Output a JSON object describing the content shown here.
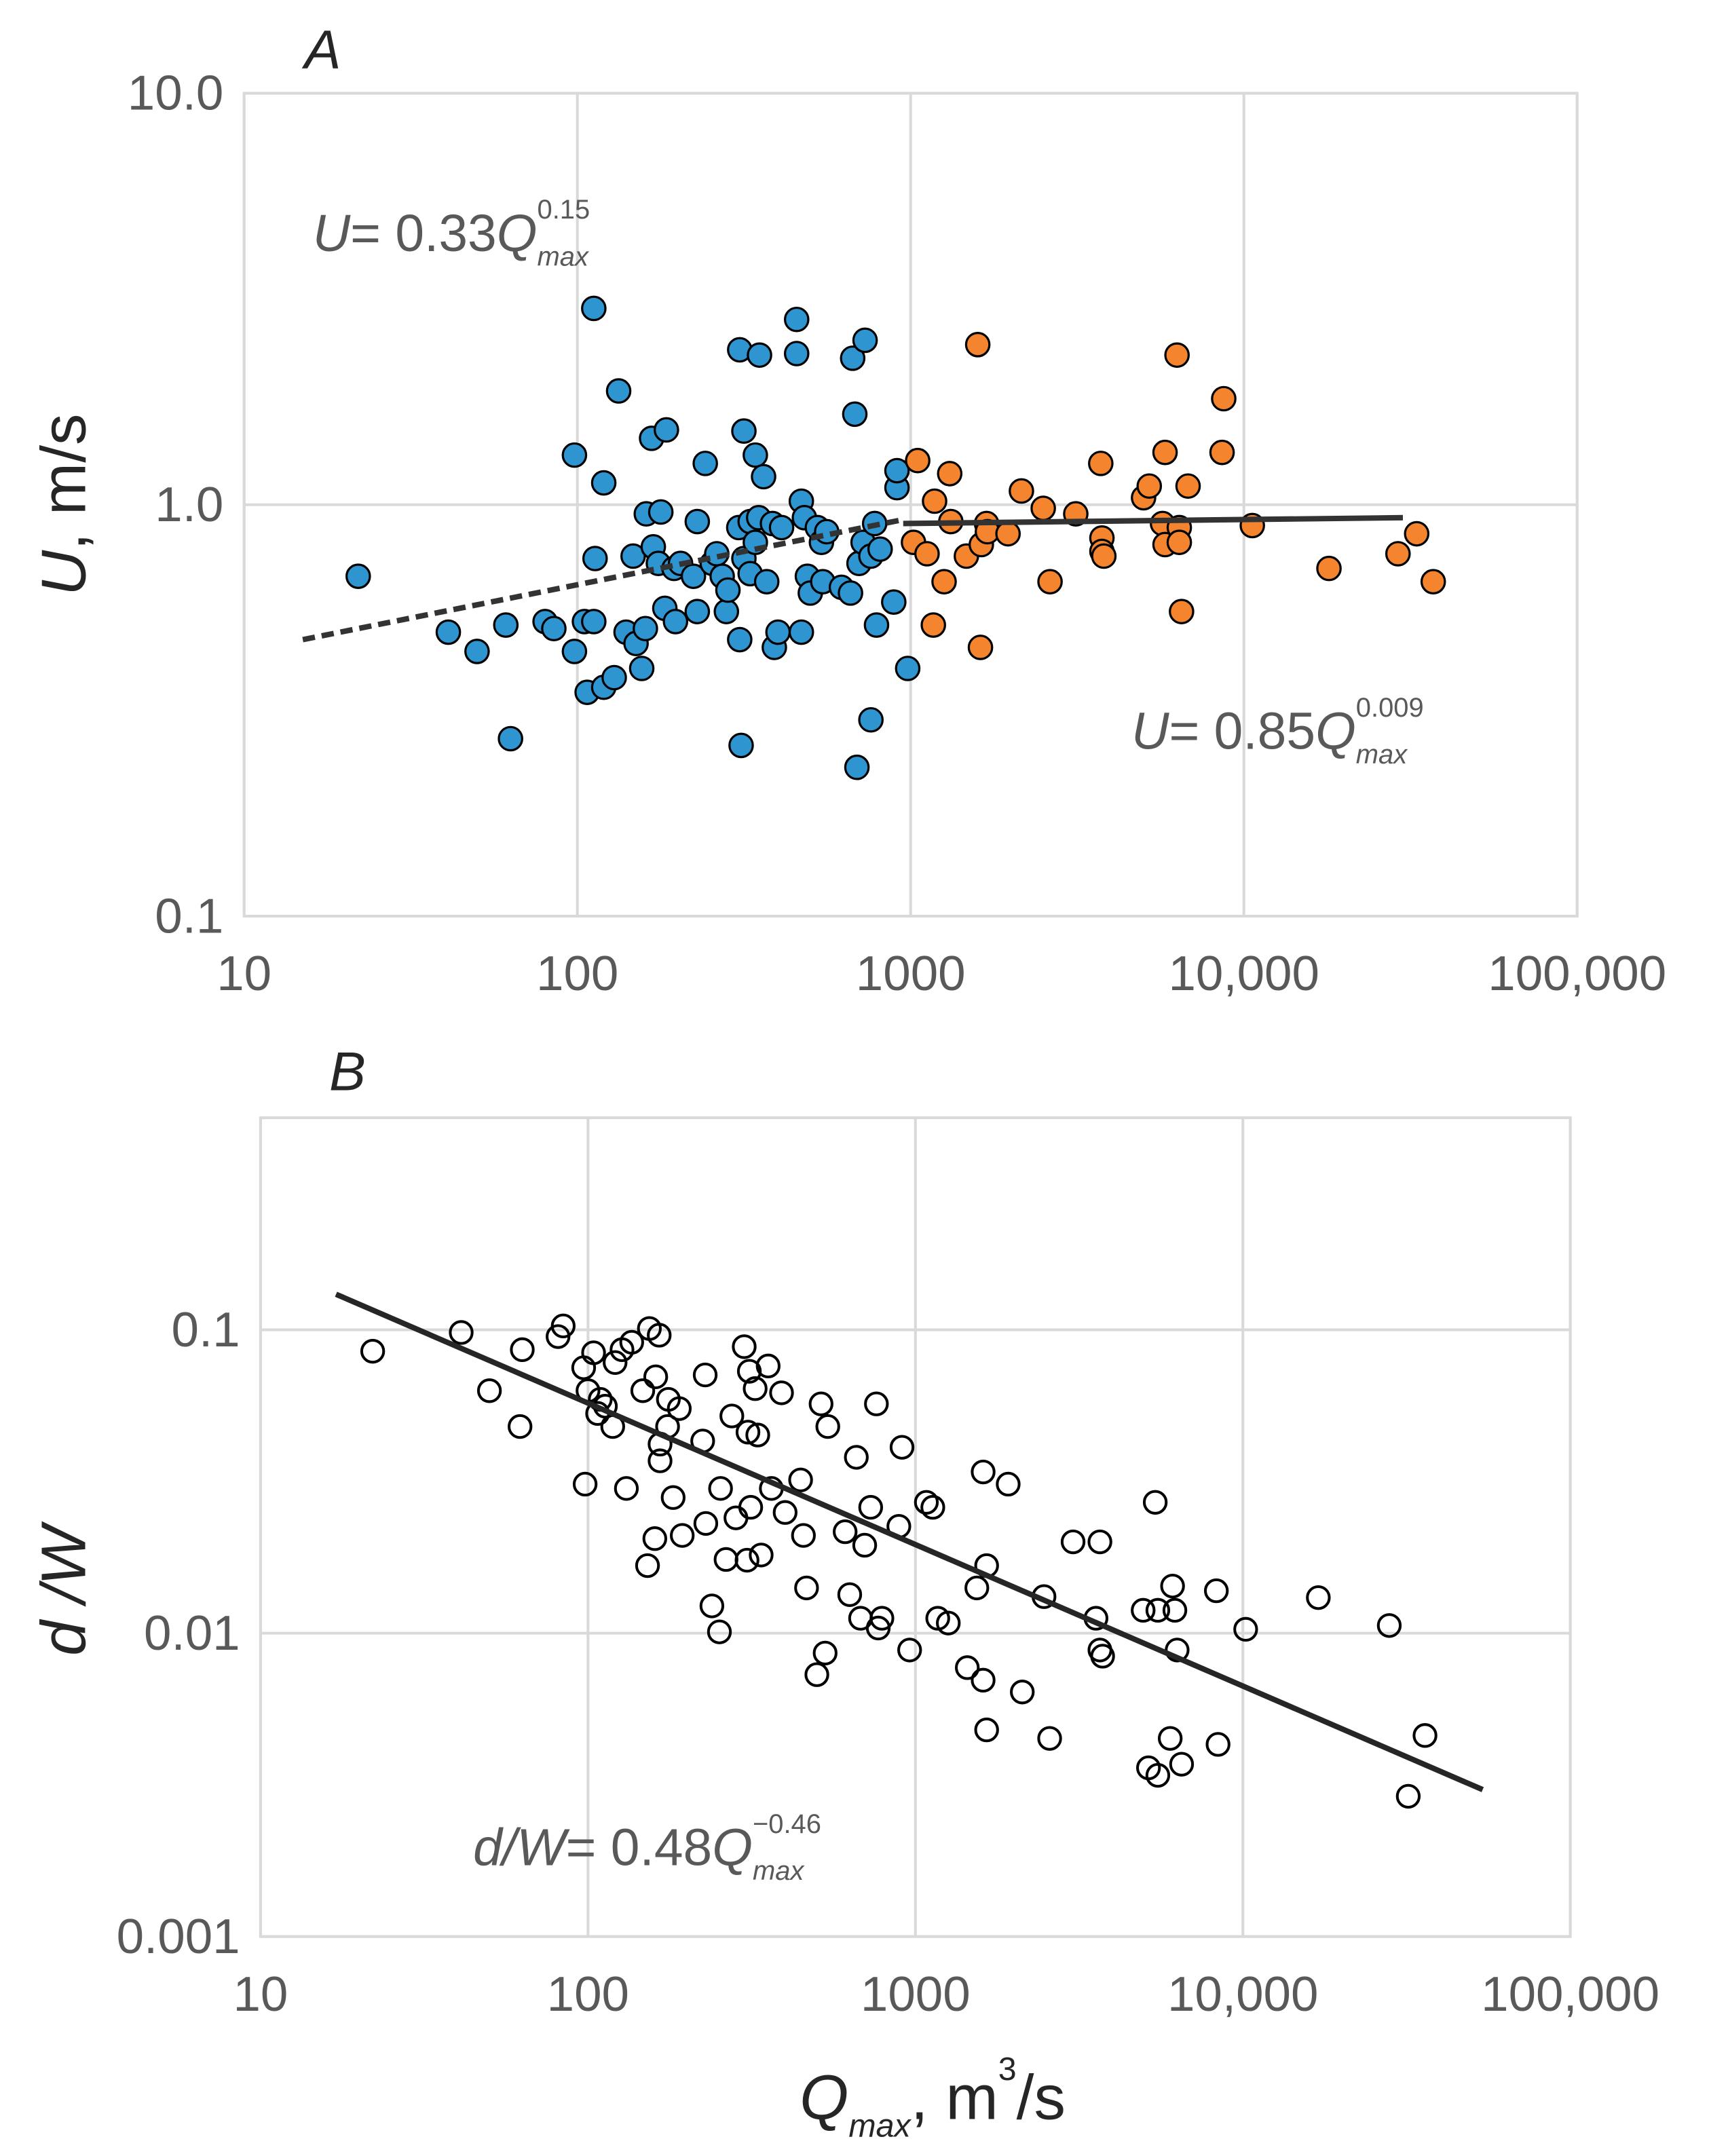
{
  "chart_data": [
    {
      "type": "scatter",
      "title": "A",
      "ylabel": [
        {
          "text": "U",
          "italic": true
        },
        {
          "text": ", m/s"
        }
      ],
      "xscale": "log",
      "yscale": "log",
      "grid": true,
      "xlim": [
        10,
        100000
      ],
      "ylim": [
        0.1,
        10
      ],
      "xticks": [
        10,
        100,
        1000,
        {
          "value": 10000,
          "label": "10,000"
        },
        {
          "value": 100000,
          "label": "100,000"
        }
      ],
      "yticks": [
        0.1,
        {
          "value": 1,
          "label": "1.0"
        },
        {
          "value": 10,
          "label": "10.0"
        }
      ],
      "marker": "filled",
      "series": [
        {
          "color": "#2e95d1",
          "x": [
            22,
            41,
            50,
            61,
            63,
            80,
            85,
            98,
            98,
            105,
            107,
            112,
            112,
            113,
            120,
            120,
            129,
            133,
            140,
            147,
            150,
            160,
            161,
            156,
            167,
            169,
            175,
            178,
            185,
            183,
            195,
            197,
            204,
            223,
            229,
            229,
            242,
            254,
            262,
            272,
            280,
            283,
            305,
            307,
            307,
            310,
            316,
            316,
            330,
            330,
            342,
            342,
            350,
            352,
            362,
            370,
            385,
            390,
            400,
            410,
            455,
            455,
            470,
            470,
            480,
            490,
            500,
            525,
            540,
            545,
            560,
            620,
            660,
            670,
            680,
            690,
            700,
            720,
            730,
            760,
            760,
            780,
            790,
            810,
            890,
            910,
            910,
            980
          ],
          "values": [
            0.67,
            0.49,
            0.44,
            0.51,
            0.27,
            0.52,
            0.5,
            1.32,
            0.44,
            0.52,
            0.35,
            3.0,
            0.52,
            0.74,
            1.13,
            0.36,
            0.38,
            1.89,
            0.49,
            0.75,
            0.46,
            0.5,
            0.95,
            0.4,
            1.45,
            0.79,
            0.72,
            0.96,
            1.52,
            0.56,
            0.7,
            0.52,
            0.72,
            0.67,
            0.55,
            0.91,
            1.26,
            0.72,
            0.76,
            0.67,
            0.55,
            0.62,
            0.88,
            2.38,
            0.47,
            0.26,
            0.74,
            1.51,
            0.91,
            0.68,
            1.32,
            0.81,
            0.93,
            2.31,
            1.17,
            0.65,
            0.9,
            0.45,
            0.49,
            0.88,
            2.82,
            2.33,
            0.49,
            1.02,
            0.93,
            0.67,
            0.61,
            0.88,
            0.81,
            0.65,
            0.86,
            0.63,
            0.61,
            2.27,
            1.66,
            0.23,
            0.72,
            0.81,
            2.51,
            0.75,
            0.3,
            0.9,
            0.51,
            0.78,
            0.58,
            1.1,
            1.21,
            0.4
          ]
        },
        {
          "color": "#f5842e",
          "x": [
            1020,
            1050,
            1120,
            1170,
            1180,
            1260,
            1310,
            1320,
            1470,
            1590,
            1620,
            1630,
            1690,
            1700,
            1960,
            2150,
            2500,
            2620,
            3130,
            3720,
            3750,
            3750,
            3800,
            5000,
            5200,
            5700,
            5800,
            5800,
            6300,
            6400,
            6400,
            6500,
            6800,
            8600,
            8700,
            10600,
            18000,
            29000,
            33000,
            37000
          ],
          "values": [
            0.81,
            1.28,
            0.76,
            0.51,
            1.02,
            0.65,
            1.19,
            0.91,
            0.75,
            2.45,
            0.45,
            0.8,
            0.9,
            0.86,
            0.85,
            1.08,
            0.98,
            0.65,
            0.95,
            1.26,
            0.83,
            0.77,
            0.75,
            1.04,
            1.11,
            0.9,
            1.34,
            0.8,
            2.31,
            0.88,
            0.81,
            0.55,
            1.11,
            1.34,
            1.81,
            0.89,
            0.7,
            0.76,
            0.85,
            0.65
          ]
        }
      ],
      "lines": [
        {
          "x": [
            15,
            950
          ],
          "values": [
            0.47,
            0.92
          ],
          "dash": true,
          "color": "#333333"
        },
        {
          "x": [
            950,
            30000
          ],
          "values": [
            0.9,
            0.93
          ],
          "dash": false,
          "color": "#333333"
        }
      ],
      "annotations": [
        [
          {
            "text": "U",
            "italic": true
          },
          {
            "text": " = 0.33"
          },
          {
            "text": "Q",
            "italic": true
          },
          {
            "text": "max",
            "italic": true,
            "shift": "sub"
          },
          {
            "text": "0.15",
            "shift": "sup"
          }
        ],
        [
          {
            "text": "U",
            "italic": true
          },
          {
            "text": " = 0.85"
          },
          {
            "text": "Q",
            "italic": true
          },
          {
            "text": "max",
            "italic": true,
            "shift": "sub"
          },
          {
            "text": "0.009",
            "shift": "sup"
          }
        ]
      ]
    },
    {
      "type": "scatter",
      "title": "B",
      "ylabel": [
        {
          "text": "d /W",
          "italic": true
        }
      ],
      "xlabel": [
        {
          "text": "Q",
          "italic": true
        },
        {
          "text": "max",
          "italic": true,
          "shift": "sub"
        },
        {
          "text": ", m"
        },
        {
          "text": "3",
          "shift": "sup"
        },
        {
          "text": "/s"
        }
      ],
      "xscale": "log",
      "yscale": "log",
      "grid": true,
      "xlim": [
        10,
        100000
      ],
      "ylim": [
        0.001,
        0.5
      ],
      "xticks": [
        10,
        100,
        1000,
        {
          "value": 10000,
          "label": "10,000"
        },
        {
          "value": 100000,
          "label": "100,000"
        }
      ],
      "yticks": [
        0.001,
        0.01,
        0.1
      ],
      "marker": "open",
      "series": [
        {
          "color": "#000000",
          "x": [
            22,
            41,
            50,
            62,
            63,
            81,
            84,
            97,
            98,
            100,
            104,
            107,
            109,
            113,
            119,
            121,
            127,
            131,
            136,
            147,
            152,
            154,
            160,
            161,
            165,
            166,
            166,
            175,
            176,
            182,
            190,
            194,
            224,
            228,
            229,
            239,
            252,
            254,
            264,
            275,
            283,
            300,
            306,
            308,
            311,
            314,
            324,
            330,
            338,
            355,
            363,
            390,
            400,
            446,
            455,
            465,
            500,
            515,
            530,
            540,
            610,
            630,
            660,
            680,
            700,
            730,
            760,
            770,
            790,
            890,
            910,
            960,
            1080,
            1130,
            1170,
            1260,
            1440,
            1540,
            1610,
            1610,
            1650,
            1650,
            1920,
            2120,
            2470,
            2570,
            3030,
            3560,
            3660,
            3660,
            3730,
            4960,
            5150,
            5400,
            5500,
            5500,
            6000,
            6100,
            6200,
            6300,
            6500,
            8300,
            8400,
            10200,
            17000,
            28000,
            32000,
            36000
          ],
          "values": [
            0.085,
            0.098,
            0.063,
            0.048,
            0.086,
            0.095,
            0.103,
            0.075,
            0.031,
            0.063,
            0.084,
            0.053,
            0.059,
            0.056,
            0.048,
            0.078,
            0.086,
            0.03,
            0.091,
            0.063,
            0.0167,
            0.101,
            0.0205,
            0.07,
            0.096,
            0.042,
            0.037,
            0.048,
            0.059,
            0.028,
            0.055,
            0.021,
            0.043,
            0.071,
            0.023,
            0.0123,
            0.0101,
            0.03,
            0.0175,
            0.052,
            0.024,
            0.088,
            0.0174,
            0.046,
            0.073,
            0.026,
            0.064,
            0.045,
            0.0181,
            0.076,
            0.03,
            0.062,
            0.025,
            0.032,
            0.021,
            0.0141,
            0.0073,
            0.057,
            0.0086,
            0.048,
            0.0216,
            0.0134,
            0.038,
            0.0112,
            0.0195,
            0.026,
            0.057,
            0.0104,
            0.0112,
            0.0225,
            0.041,
            0.0088,
            0.027,
            0.026,
            0.0112,
            0.0108,
            0.0077,
            0.0141,
            0.034,
            0.007,
            0.0167,
            0.0048,
            0.031,
            0.0064,
            0.0132,
            0.0045,
            0.02,
            0.0112,
            0.02,
            0.0088,
            0.0084,
            0.0119,
            0.0036,
            0.027,
            0.0034,
            0.0119,
            0.0045,
            0.0143,
            0.0119,
            0.0088,
            0.0037,
            0.0138,
            0.0043,
            0.0103,
            0.0131,
            0.0106,
            0.0029,
            0.0046
          ]
        }
      ],
      "lines": [
        {
          "x": [
            17,
            54000
          ],
          "values": [
            0.131,
            0.00305
          ],
          "dash": false,
          "color": "#262626"
        }
      ],
      "annotations": [
        [
          {
            "text": "d/W",
            "italic": true
          },
          {
            "text": " = 0.48"
          },
          {
            "text": "Q",
            "italic": true
          },
          {
            "text": "max",
            "italic": true,
            "shift": "sub"
          },
          {
            "text": "−0.46",
            "shift": "sup"
          }
        ]
      ]
    }
  ]
}
